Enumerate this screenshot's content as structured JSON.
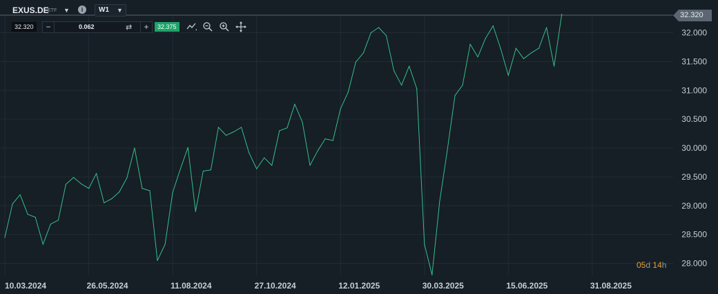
{
  "toolbar": {
    "symbol": "EXUS.DE",
    "symbol_type": "ETF",
    "timeframe": "W1",
    "price_left": "32.320",
    "spread": "0.062",
    "price_right": "32.375"
  },
  "price_tag": "32.320",
  "countdown": {
    "days": "05",
    "d": "d",
    "hours": "14",
    "h": "h"
  },
  "colors": {
    "background": "#161e26",
    "line": "#35c08a",
    "grid": "#222c36",
    "countdown": "#e3a233"
  },
  "icons": [
    "dropdown-caret-icon",
    "info-icon",
    "swap-icon",
    "line-tool-icon",
    "zoom-out-icon",
    "zoom-in-icon",
    "crosshair-icon"
  ],
  "chart_data": {
    "type": "line",
    "x_unit": "week",
    "x_tick_labels": [
      "10.03.2024",
      "26.05.2024",
      "11.08.2024",
      "27.10.2024",
      "12.01.2025",
      "30.03.2025",
      "15.06.2025",
      "31.08.2025"
    ],
    "ylim": [
      27.8,
      32.45
    ],
    "y_ticks": [
      28.0,
      28.5,
      29.0,
      29.5,
      30.0,
      30.5,
      31.0,
      31.5,
      32.0
    ],
    "y_tick_labels": [
      "28.000",
      "28.500",
      "29.000",
      "29.500",
      "30.000",
      "30.500",
      "31.000",
      "31.500",
      "32.000"
    ],
    "grid": true,
    "series": [
      {
        "values": [
          28.45,
          29.03,
          29.19,
          28.85,
          28.8,
          28.33,
          28.68,
          28.75,
          29.37,
          29.49,
          29.38,
          29.3,
          29.56,
          29.05,
          29.12,
          29.24,
          29.48,
          30.0,
          29.3,
          29.26,
          28.05,
          28.33,
          29.23,
          29.63,
          30.01,
          28.9,
          29.6,
          29.62,
          30.36,
          30.22,
          30.28,
          30.36,
          29.92,
          29.64,
          29.83,
          29.7,
          30.3,
          30.35,
          30.76,
          30.45,
          29.7,
          29.95,
          30.16,
          30.13,
          30.68,
          30.97,
          31.49,
          31.65,
          32.0,
          32.09,
          31.95,
          31.34,
          31.09,
          31.42,
          31.03,
          28.33,
          27.8,
          29.08,
          29.96,
          30.91,
          31.09,
          31.8,
          31.58,
          31.9,
          32.12,
          31.72,
          31.26,
          31.73,
          31.55,
          31.65,
          31.73,
          32.09,
          31.42,
          32.32
        ]
      }
    ]
  }
}
